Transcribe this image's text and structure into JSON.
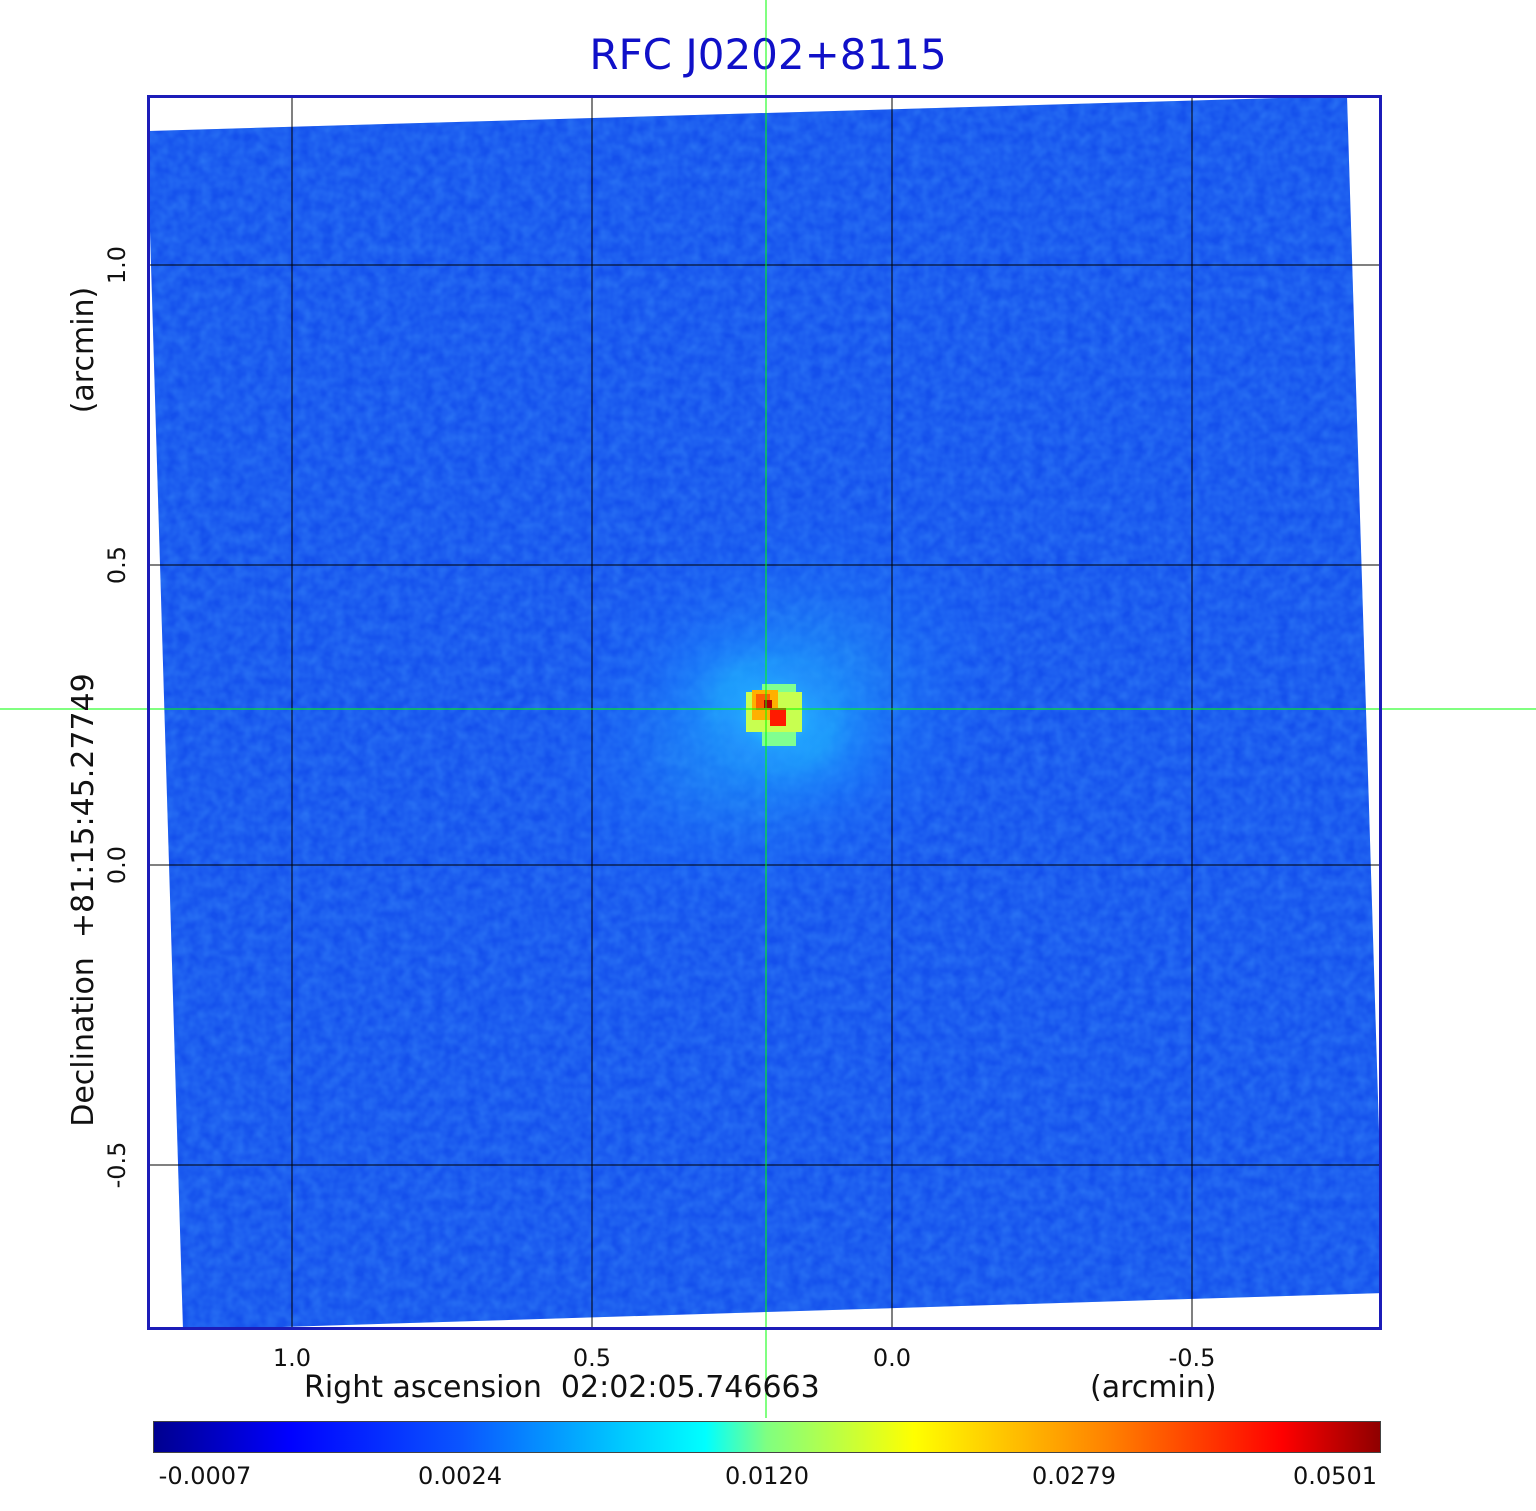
{
  "title": "RFC J0202+8115",
  "x_axis": {
    "label": "Right ascension  02:02:05.746663",
    "unit": "(arcmin)",
    "ticks": [
      {
        "label": "1.0",
        "value": 1.0
      },
      {
        "label": "0.5",
        "value": 0.5
      },
      {
        "label": "0.0",
        "value": 0.0
      },
      {
        "label": "-0.5",
        "value": -0.5
      }
    ]
  },
  "y_axis": {
    "label": "Declination  +81:15:45.27749",
    "unit": "(arcmin)",
    "ticks": [
      {
        "label": "1.0",
        "value": 1.0
      },
      {
        "label": "0.5",
        "value": 0.5
      },
      {
        "label": "0.0",
        "value": 0.0
      },
      {
        "label": "-0.5",
        "value": -0.5
      }
    ]
  },
  "crosshair": {
    "ra_offset": 0.21,
    "dec_offset": 0.26,
    "color": "#00ff00"
  },
  "source": {
    "ra_offset": 0.2,
    "dec_offset": 0.25
  },
  "colorbar": {
    "ticks": [
      "-0.0007",
      "0.0024",
      "0.0120",
      "0.0279",
      "0.0501"
    ]
  },
  "colors": {
    "background_blue": "#1455ee",
    "frame": "#1c1cb8",
    "title": "#1010c8",
    "grid": "#000000"
  }
}
